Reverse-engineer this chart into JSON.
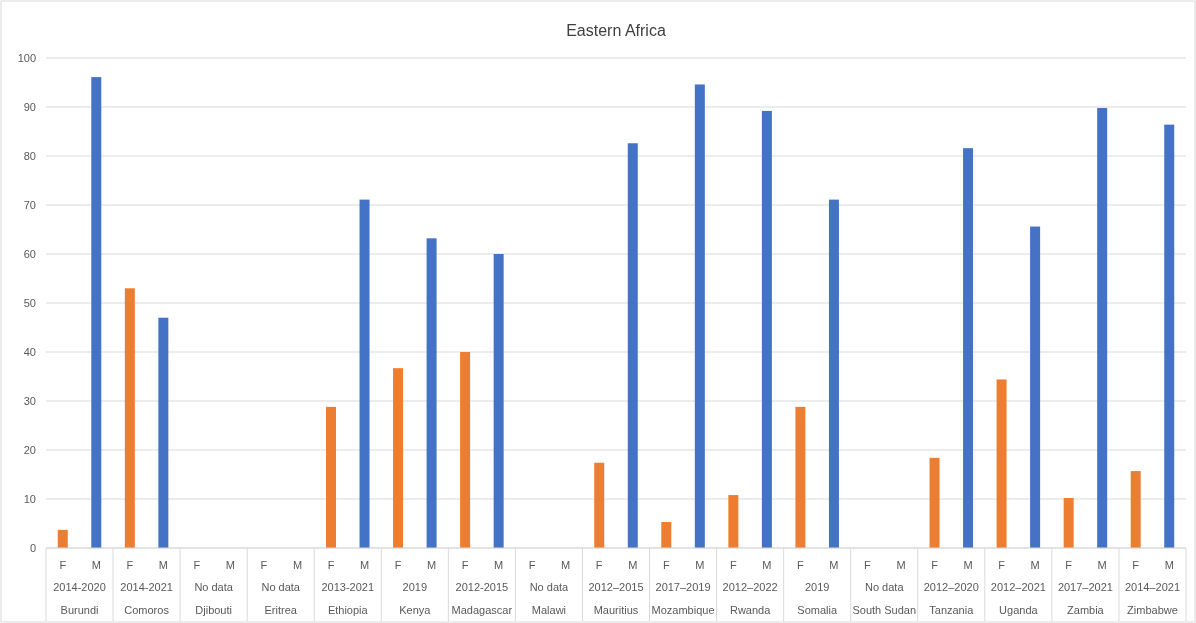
{
  "chart_data": {
    "type": "bar",
    "title": "Eastern Africa",
    "categories": [
      "Burundi",
      "Comoros",
      "Djibouti",
      "Eritrea",
      "Ethiopia",
      "Kenya",
      "Madagascar",
      "Malawi",
      "Mauritius",
      "Mozambique",
      "Rwanda",
      "Somalia",
      "South Sudan",
      "Tanzania",
      "Uganda",
      "Zambia",
      "Zimbabwe"
    ],
    "series": [
      {
        "name": "F",
        "color": "#ed7d31",
        "values": [
          3.7,
          53,
          null,
          null,
          28.8,
          36.7,
          40,
          null,
          17.4,
          5.3,
          10.8,
          28.8,
          null,
          18.4,
          34.4,
          10.2,
          15.7
        ]
      },
      {
        "name": "M",
        "color": "#4472c4",
        "values": [
          96.1,
          47,
          null,
          null,
          71.1,
          63.2,
          60,
          null,
          82.6,
          94.6,
          89.2,
          71.1,
          null,
          81.6,
          65.6,
          89.8,
          86.4
        ]
      }
    ],
    "annotations": [
      "2014-2020",
      "2014-2021",
      "No data",
      "No data",
      "2013-2021",
      "2019",
      "2012-2015",
      "No data",
      "2012–2015",
      "2017–2019",
      "2012–2022",
      "2019",
      "No data",
      "2012–2020",
      "2012–2021",
      "2017–2021",
      "2014–2021"
    ],
    "ylim": [
      0,
      100
    ],
    "yticks": [
      0,
      10,
      20,
      30,
      40,
      50,
      60,
      70,
      80,
      90,
      100
    ],
    "grid": "y",
    "legend": false
  }
}
